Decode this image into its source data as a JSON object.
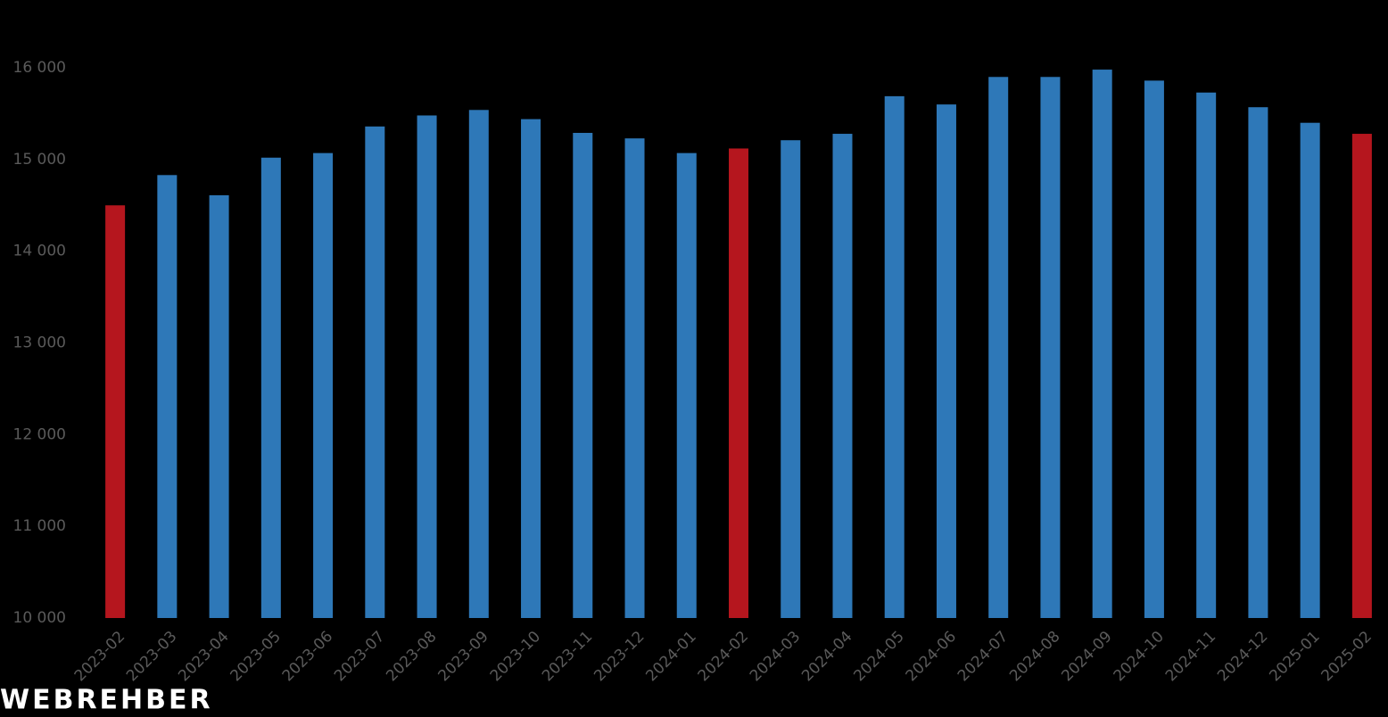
{
  "chart_data": {
    "type": "bar",
    "categories": [
      "2023-02",
      "2023-03",
      "2023-04",
      "2023-05",
      "2023-06",
      "2023-07",
      "2023-08",
      "2023-09",
      "2023-10",
      "2023-11",
      "2023-12",
      "2024-01",
      "2024-02",
      "2024-03",
      "2024-04",
      "2024-05",
      "2024-06",
      "2024-07",
      "2024-08",
      "2024-09",
      "2024-10",
      "2024-11",
      "2024-12",
      "2025-01",
      "2025-02"
    ],
    "values": [
      14500,
      14830,
      14610,
      15020,
      15070,
      15360,
      15480,
      15540,
      15440,
      15290,
      15230,
      15070,
      15120,
      15210,
      15280,
      15690,
      15600,
      15900,
      15900,
      15980,
      15860,
      15730,
      15570,
      15400,
      15280
    ],
    "colors": [
      "#b5161e",
      "#2e78b8",
      "#2e78b8",
      "#2e78b8",
      "#2e78b8",
      "#2e78b8",
      "#2e78b8",
      "#2e78b8",
      "#2e78b8",
      "#2e78b8",
      "#2e78b8",
      "#2e78b8",
      "#b5161e",
      "#2e78b8",
      "#2e78b8",
      "#2e78b8",
      "#2e78b8",
      "#2e78b8",
      "#2e78b8",
      "#2e78b8",
      "#2e78b8",
      "#2e78b8",
      "#2e78b8",
      "#2e78b8",
      "#b5161e"
    ],
    "ylim": [
      10000,
      16000
    ],
    "yticks": [
      {
        "value": 10000,
        "label": "10 000"
      },
      {
        "value": 11000,
        "label": "11 000"
      },
      {
        "value": 12000,
        "label": "12 000"
      },
      {
        "value": 13000,
        "label": "13 000"
      },
      {
        "value": 14000,
        "label": "14 000"
      },
      {
        "value": 15000,
        "label": "15 000"
      },
      {
        "value": 16000,
        "label": "16 000"
      }
    ],
    "grid": false,
    "watermark": "WEBREHBER"
  }
}
